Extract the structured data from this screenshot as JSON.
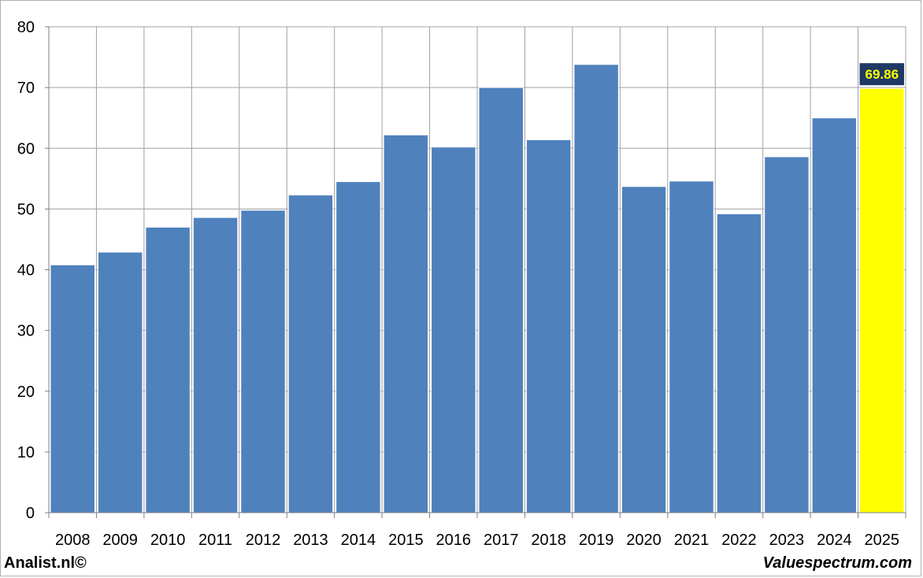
{
  "chart_data": {
    "type": "bar",
    "title": "",
    "xlabel": "",
    "ylabel": "",
    "categories": [
      "2008",
      "2009",
      "2010",
      "2011",
      "2012",
      "2013",
      "2014",
      "2015",
      "2016",
      "2017",
      "2018",
      "2019",
      "2020",
      "2021",
      "2022",
      "2023",
      "2024",
      "2025"
    ],
    "values": [
      40.8,
      42.9,
      47.0,
      48.6,
      49.8,
      52.3,
      54.5,
      62.2,
      60.2,
      70.0,
      61.4,
      73.8,
      53.7,
      54.6,
      49.2,
      58.6,
      65.0,
      69.86
    ],
    "yticks": [
      "0",
      "10",
      "20",
      "30",
      "40",
      "50",
      "60",
      "70",
      "80"
    ],
    "ylim": [
      0,
      80
    ],
    "grid": true,
    "bar_color": "#4f81bd",
    "highlight_color": "#ffff00",
    "highlight_index": 17,
    "callout": {
      "label": "69.86",
      "background": "#1f3864",
      "text_color": "#ffff00"
    }
  },
  "footer": {
    "left": "Analist.nl©",
    "right": "Valuespectrum.com"
  }
}
